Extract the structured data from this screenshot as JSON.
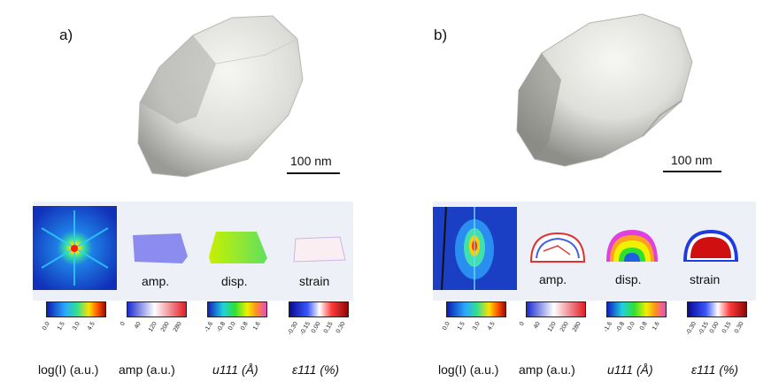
{
  "panels": [
    {
      "letter": "a)",
      "scale": "100 nm",
      "thumbs": [
        "amp.",
        "disp.",
        "strain"
      ],
      "colorbars": [
        {
          "ticks": [
            "0.0",
            "1.5",
            "3.0",
            "4.5"
          ],
          "label": "log(I) (a.u.)"
        },
        {
          "ticks": [
            "0",
            "40",
            "120",
            "200",
            "280"
          ],
          "label": "amp (a.u.)"
        },
        {
          "ticks": [
            "-1.6",
            "-0.8",
            "0.0",
            "0.8",
            "1.6"
          ],
          "label": "u111 (Å)"
        },
        {
          "ticks": [
            "-0.30",
            "-0.15",
            "0.00",
            "0.15",
            "0.30"
          ],
          "label": "ε111 (%)"
        }
      ]
    },
    {
      "letter": "b)",
      "scale": "100 nm",
      "thumbs": [
        "amp.",
        "disp.",
        "strain"
      ],
      "colorbars": [
        {
          "ticks": [
            "0.0",
            "1.5",
            "3.0",
            "4.5"
          ],
          "label": "log(I) (a.u.)"
        },
        {
          "ticks": [
            "0",
            "40",
            "120",
            "200",
            "280"
          ],
          "label": "amp (a.u.)"
        },
        {
          "ticks": [
            "-1.6",
            "-0.8",
            "0.0",
            "0.8",
            "1.6"
          ],
          "label": "u111 (Å)"
        },
        {
          "ticks": [
            "-0.30",
            "-0.15",
            "0.00",
            "0.15",
            "0.30"
          ],
          "label": "ε111 (%)"
        }
      ]
    }
  ],
  "colors": {
    "crystal_light": "#f1f1ee",
    "crystal_dark": "#9c9c98",
    "strip_bg": "#eef0f8"
  }
}
